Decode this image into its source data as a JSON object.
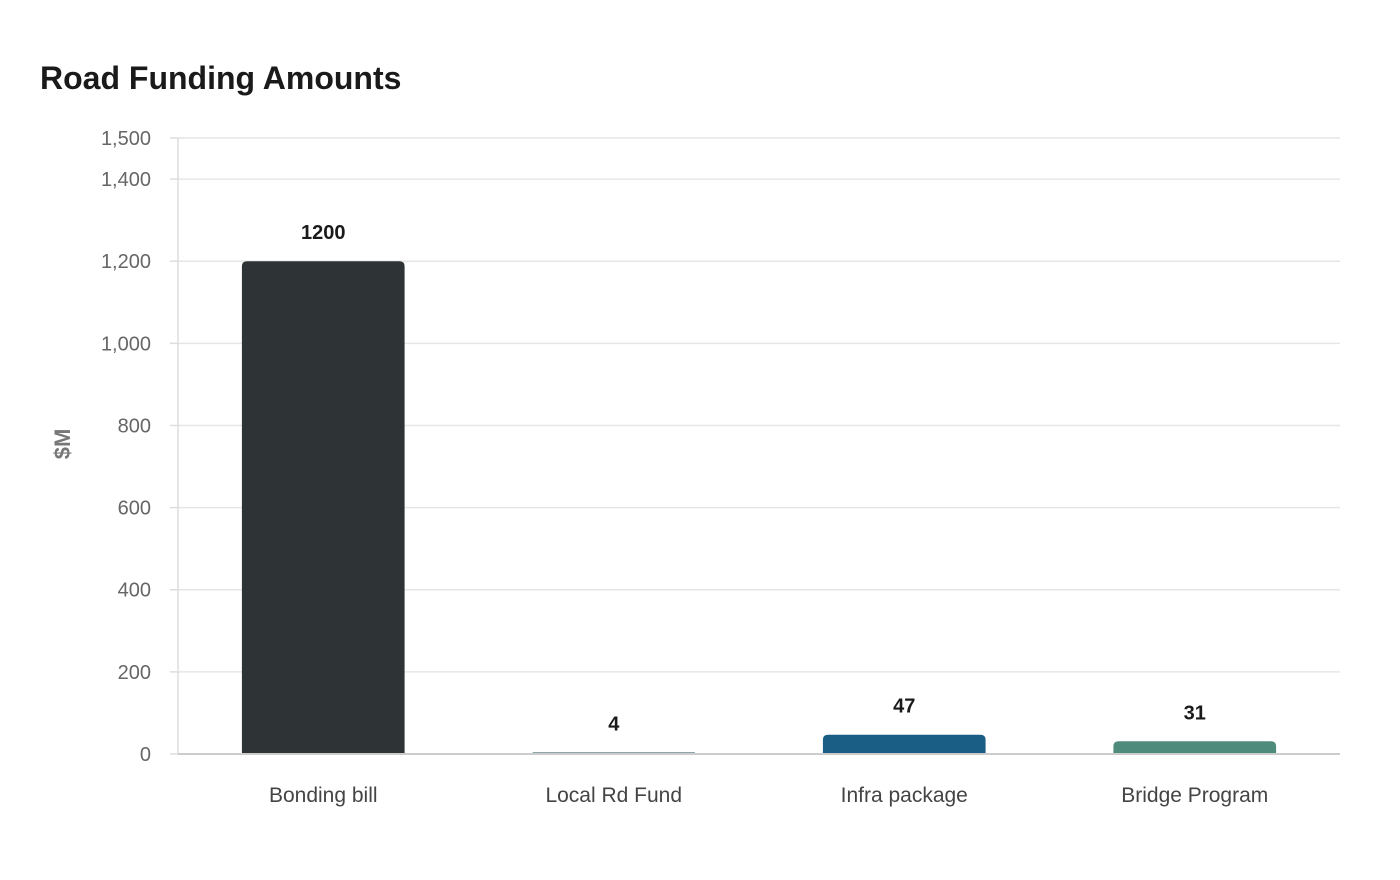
{
  "chart_data": {
    "type": "bar",
    "title": "Road Funding Amounts",
    "xlabel": "",
    "ylabel": "$M",
    "categories": [
      "Bonding bill",
      "Local Rd Fund",
      "Infra package",
      "Bridge Program"
    ],
    "values": [
      1200,
      4,
      47,
      31
    ],
    "value_labels": [
      "1200",
      "4",
      "47",
      "31"
    ],
    "colors": [
      "#2e3436",
      "#8fa3ad",
      "#1b5e85",
      "#4e8b7c"
    ],
    "ylim": [
      0,
      1500
    ],
    "yticks": [
      0,
      200,
      400,
      600,
      800,
      1000,
      1200,
      1400,
      1500
    ],
    "ytick_labels": [
      "0",
      "200",
      "400",
      "600",
      "800",
      "1,000",
      "1,200",
      "1,400",
      "1,500"
    ],
    "grid": true,
    "legend": "none"
  }
}
